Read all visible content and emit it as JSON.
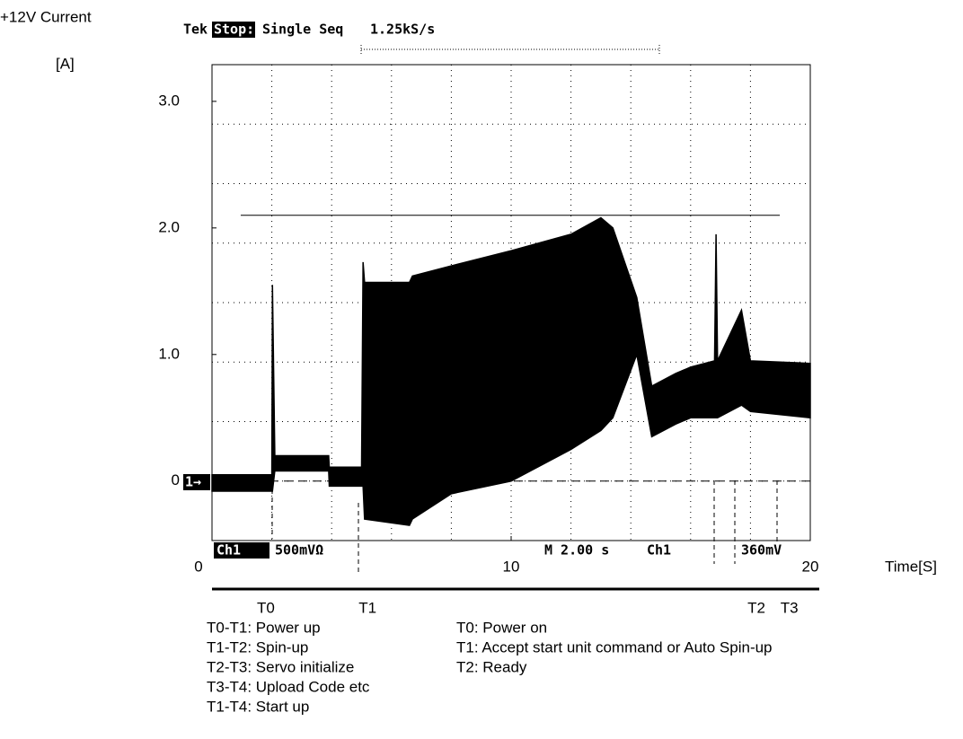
{
  "chart_data": {
    "type": "range_area",
    "y_label": "+12V Current",
    "y_unit": "[A]",
    "x_label": "Time[S]",
    "xlim": [
      0,
      20
    ],
    "ylim": [
      -0.47,
      3.29
    ],
    "xticks": [
      0,
      10,
      20
    ],
    "yticks": [
      0,
      {
        "value": 1,
        "label": "1.0"
      },
      {
        "value": 2,
        "label": "2.0"
      },
      {
        "value": 3,
        "label": "3.0"
      }
    ],
    "color": "#000000",
    "x": [
      0,
      2.0,
      2.02,
      2.1,
      3.9,
      3.92,
      5.0,
      5.05,
      5.1,
      6.6,
      6.7,
      8,
      10,
      12,
      13,
      13.4,
      14.2,
      14.7,
      15.5,
      16.0,
      16.8,
      16.85,
      16.9,
      17.7,
      18.0,
      20
    ],
    "high": [
      0.05,
      0.05,
      1.55,
      0.2,
      0.2,
      0.11,
      0.11,
      1.73,
      1.57,
      1.57,
      1.62,
      1.7,
      1.82,
      1.95,
      2.08,
      2.0,
      1.45,
      0.75,
      0.85,
      0.9,
      0.95,
      1.95,
      0.95,
      1.35,
      0.95,
      0.93
    ],
    "low": [
      -0.08,
      -0.08,
      -0.08,
      0.08,
      0.08,
      -0.04,
      -0.04,
      -0.04,
      -0.3,
      -0.35,
      -0.3,
      -0.1,
      0.0,
      0.25,
      0.4,
      0.5,
      1.0,
      0.35,
      0.45,
      0.5,
      0.5,
      0.5,
      0.5,
      0.6,
      0.55,
      0.5
    ],
    "hline": {
      "y": 2.1,
      "x": [
        0.96,
        18.98
      ]
    },
    "markers": [
      {
        "label": "T0",
        "x": 1.8
      },
      {
        "label": "T1",
        "x": 5.2
      },
      {
        "label": "T2",
        "x": 18.2
      },
      {
        "label": "T3",
        "x": 19.3
      }
    ],
    "scope": {
      "brand": "Tek",
      "state": "Stop:",
      "mode": "Single Seq",
      "rate": "1.25kS/s",
      "channel": "Ch1",
      "scale": "500mVΩ",
      "timebase": "M 2.00 s",
      "trig_channel": "Ch1",
      "trig_level": "360mV",
      "ch_marker": "1→"
    },
    "notes_left": [
      "T0-T1: Power up",
      "T1-T2: Spin-up",
      "T2-T3: Servo initialize",
      "T3-T4: Upload Code etc",
      "T1-T4: Start up"
    ],
    "notes_right": [
      "T0: Power on",
      "T1: Accept start unit command or Auto Spin-up",
      "T2: Ready"
    ]
  }
}
